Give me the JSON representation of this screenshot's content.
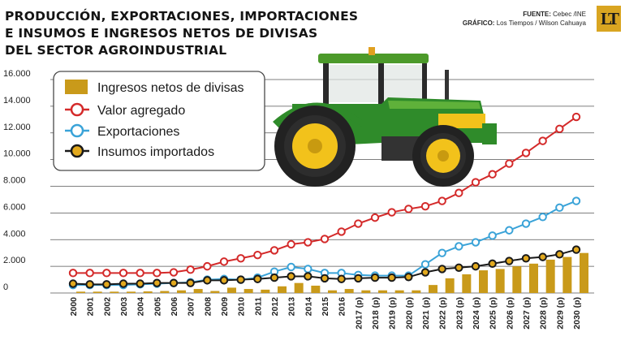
{
  "header": {
    "title_lines": [
      "PRODUCCIÓN, EXPORTACIONES, IMPORTACIONES",
      "E INSUMOS E INGRESOS NETOS DE DIVISAS",
      "DEL SECTOR AGROINDUSTRIAL"
    ],
    "source_label": "FUENTE:",
    "source_value": "Cebec /INE",
    "graphic_label": "GRÁFICO:",
    "graphic_value": "Los Tiempos / Wilson Cahuaya",
    "logo_text": "LT"
  },
  "colors": {
    "bars": "#c99a1a",
    "valor_agregado": "#d42a2a",
    "exportaciones": "#3aa3d8",
    "insumos": "#1a1a1a",
    "insumos_marker": "#e2a91e",
    "grid": "#555555",
    "logo": "#d9a521"
  },
  "chart_data": {
    "type": "bar+line",
    "title": "PRODUCCIÓN, EXPORTACIONES, IMPORTACIONES E INSUMOS E INGRESOS NETOS DE DIVISAS DEL SECTOR AGROINDUSTRIAL",
    "xlabel": "",
    "ylabel": "",
    "ylim": [
      0,
      16000
    ],
    "yticks": [
      "0",
      "2.000",
      "4.000",
      "6.000",
      "8.000",
      "10.000",
      "12.000",
      "14.000",
      "16.000"
    ],
    "grid": true,
    "legend_position": "top-left",
    "categories": [
      "2000",
      "2001",
      "2002",
      "2003",
      "2004",
      "2005",
      "2006",
      "2007",
      "2008",
      "2009",
      "2010",
      "2011",
      "2012",
      "2013",
      "2014",
      "2015",
      "2016",
      "2017 (p)",
      "2018 (p)",
      "2019 (p)",
      "2020 (p)",
      "2021 (p)",
      "2022 (p)",
      "2023 (p)",
      "2024 (p)",
      "2025 (p)",
      "2026 (p)",
      "2027 (p)",
      "2028 (p)",
      "2029 (p)",
      "2030 (p)"
    ],
    "series": [
      {
        "name": "Ingresos netos de divisas",
        "type": "bar",
        "values": [
          100,
          100,
          100,
          100,
          120,
          150,
          200,
          300,
          150,
          400,
          300,
          250,
          500,
          750,
          550,
          200,
          300,
          200,
          200,
          200,
          200,
          600,
          1100,
          1400,
          1700,
          1800,
          2000,
          2200,
          2500,
          2700,
          3000
        ]
      },
      {
        "name": "Valor agregado",
        "type": "line",
        "values": [
          1500,
          1500,
          1500,
          1500,
          1500,
          1500,
          1550,
          1750,
          2000,
          2350,
          2600,
          2850,
          3200,
          3650,
          3800,
          4050,
          4600,
          5200,
          5650,
          6050,
          6300,
          6500,
          6900,
          7500,
          8300,
          8900,
          9700,
          10500,
          11400,
          12300,
          13200
        ]
      },
      {
        "name": "Exportaciones",
        "type": "line",
        "values": [
          600,
          600,
          600,
          600,
          650,
          700,
          750,
          800,
          1000,
          1050,
          1000,
          1150,
          1600,
          1950,
          1800,
          1500,
          1500,
          1350,
          1300,
          1300,
          1300,
          2150,
          3000,
          3500,
          3800,
          4300,
          4700,
          5200,
          5700,
          6400,
          6900
        ]
      },
      {
        "name": "Insumos importados",
        "type": "line",
        "values": [
          700,
          650,
          650,
          700,
          700,
          750,
          750,
          750,
          950,
          950,
          1000,
          1050,
          1150,
          1250,
          1250,
          1100,
          1050,
          1100,
          1150,
          1150,
          1200,
          1550,
          1800,
          1900,
          2000,
          2200,
          2400,
          2600,
          2700,
          2900,
          3250
        ]
      }
    ]
  }
}
